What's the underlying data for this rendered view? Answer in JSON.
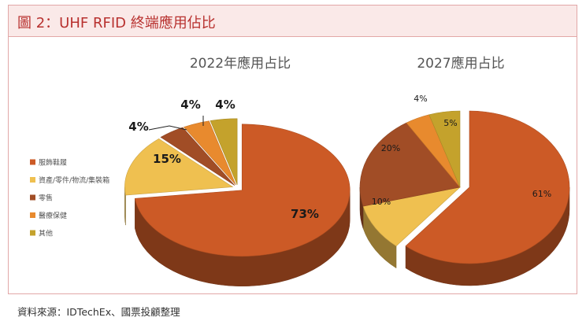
{
  "header": {
    "title": "圖 2：UHF RFID 終端應用佔比"
  },
  "source": "資料來源：IDTechEx、國票投顧整理",
  "chart_data": [
    {
      "type": "pie",
      "title": "2022年應用占比",
      "categories": [
        "服飾鞋履",
        "資產/零件/物流/集裝箱",
        "零售",
        "醫療保健",
        "其他"
      ],
      "values": [
        73,
        15,
        4,
        4,
        4
      ],
      "labels": [
        "73%",
        "15%",
        "4%",
        "4%",
        "4%"
      ],
      "colors": [
        "#cc5a26",
        "#efc050",
        "#a14d26",
        "#e88a2e",
        "#c4a22c"
      ]
    },
    {
      "type": "pie",
      "title": "2027應用占比",
      "categories": [
        "服飾鞋履",
        "資產/零件/物流/集裝箱",
        "零售",
        "醫療保健",
        "其他"
      ],
      "values": [
        61,
        10,
        20,
        4,
        5
      ],
      "labels": [
        "61%",
        "10%",
        "20%",
        "4%",
        "5%"
      ],
      "colors": [
        "#cc5a26",
        "#efc050",
        "#a14d26",
        "#e88a2e",
        "#c4a22c"
      ]
    }
  ],
  "legend": {
    "placement": "left",
    "items": [
      "服飾鞋履",
      "資產/零件/物流/集裝箱",
      "零售",
      "醫療保健",
      "其他"
    ]
  }
}
